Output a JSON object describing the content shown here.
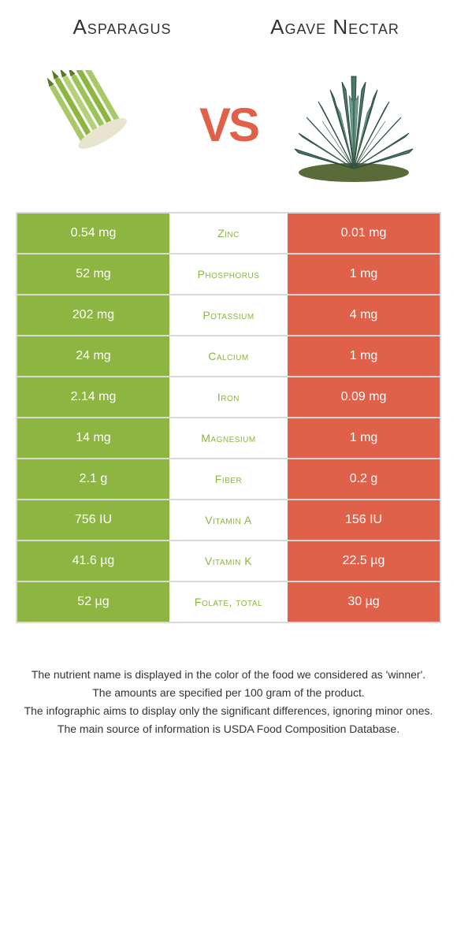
{
  "colors": {
    "left": "#8cb542",
    "right": "#e0614a",
    "border": "#d9d9d9",
    "background": "#ffffff",
    "vs_color": "#e0614a",
    "text_color": "#333333"
  },
  "typography": {
    "title_fontsize": 26,
    "vs_fontsize": 60,
    "cell_fontsize": 16,
    "mid_fontsize": 14,
    "footer_fontsize": 14,
    "font_family": "Tahoma"
  },
  "header": {
    "left_title": "Asparagus",
    "right_title": "Agave Nectar",
    "vs_label": "VS"
  },
  "rows": [
    {
      "left": "0.54 mg",
      "mid": "Zinc",
      "right": "0.01 mg",
      "winner": "left"
    },
    {
      "left": "52 mg",
      "mid": "Phosphorus",
      "right": "1 mg",
      "winner": "left"
    },
    {
      "left": "202 mg",
      "mid": "Potassium",
      "right": "4 mg",
      "winner": "left"
    },
    {
      "left": "24 mg",
      "mid": "Calcium",
      "right": "1 mg",
      "winner": "left"
    },
    {
      "left": "2.14 mg",
      "mid": "Iron",
      "right": "0.09 mg",
      "winner": "left"
    },
    {
      "left": "14 mg",
      "mid": "Magnesium",
      "right": "1 mg",
      "winner": "left"
    },
    {
      "left": "2.1 g",
      "mid": "Fiber",
      "right": "0.2 g",
      "winner": "left"
    },
    {
      "left": "756 IU",
      "mid": "Vitamin A",
      "right": "156 IU",
      "winner": "left"
    },
    {
      "left": "41.6 µg",
      "mid": "Vitamin K",
      "right": "22.5 µg",
      "winner": "left"
    },
    {
      "left": "52 µg",
      "mid": "Folate, total",
      "right": "30 µg",
      "winner": "left"
    }
  ],
  "footer": {
    "line1": "The nutrient name is displayed in the color of the food we considered as 'winner'.",
    "line2": "The amounts are specified per 100 gram of the product.",
    "line3": "The infographic aims to display only the significant differences, ignoring minor ones.",
    "line4": "The main source of information is USDA Food Composition Database."
  }
}
